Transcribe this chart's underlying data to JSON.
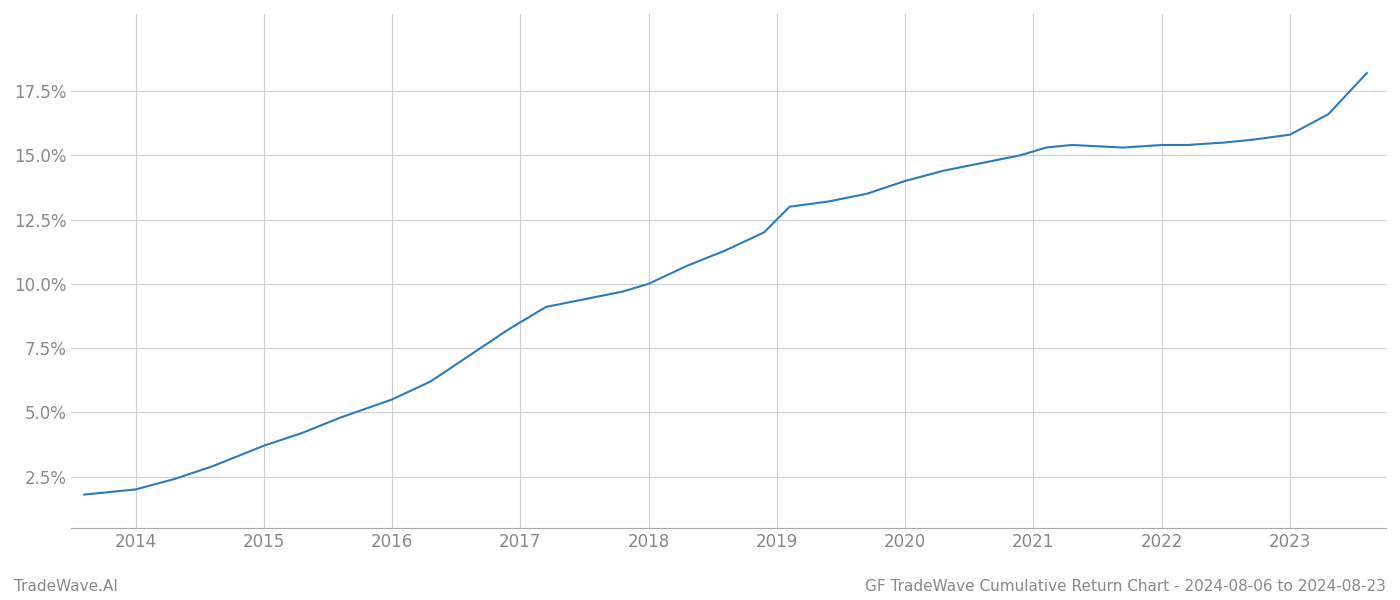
{
  "x_values": [
    2013.6,
    2014.0,
    2014.3,
    2014.6,
    2015.0,
    2015.3,
    2015.6,
    2016.0,
    2016.3,
    2016.6,
    2016.9,
    2017.2,
    2017.5,
    2017.8,
    2018.0,
    2018.3,
    2018.6,
    2018.9,
    2019.1,
    2019.4,
    2019.7,
    2020.0,
    2020.3,
    2020.6,
    2020.9,
    2021.1,
    2021.3,
    2021.5,
    2021.7,
    2022.0,
    2022.2,
    2022.5,
    2022.7,
    2023.0,
    2023.3,
    2023.6
  ],
  "y_values": [
    0.018,
    0.02,
    0.024,
    0.029,
    0.037,
    0.042,
    0.048,
    0.055,
    0.062,
    0.072,
    0.082,
    0.091,
    0.094,
    0.097,
    0.1,
    0.107,
    0.113,
    0.12,
    0.13,
    0.132,
    0.135,
    0.14,
    0.144,
    0.147,
    0.15,
    0.153,
    0.154,
    0.1535,
    0.153,
    0.154,
    0.154,
    0.155,
    0.156,
    0.158,
    0.166,
    0.182
  ],
  "line_color": "#2b7bb9",
  "line_width": 1.5,
  "background_color": "#ffffff",
  "grid_color": "#d0d0d0",
  "title": "GF TradeWave Cumulative Return Chart - 2024-08-06 to 2024-08-23",
  "watermark": "TradeWave.AI",
  "xlim": [
    2013.5,
    2023.75
  ],
  "ylim": [
    0.005,
    0.205
  ],
  "yticks": [
    0.025,
    0.05,
    0.075,
    0.1,
    0.125,
    0.15,
    0.175
  ],
  "xticks": [
    2014,
    2015,
    2016,
    2017,
    2018,
    2019,
    2020,
    2021,
    2022,
    2023
  ],
  "tick_color": "#888888",
  "title_fontsize": 11,
  "watermark_fontsize": 11,
  "tick_fontsize": 12
}
